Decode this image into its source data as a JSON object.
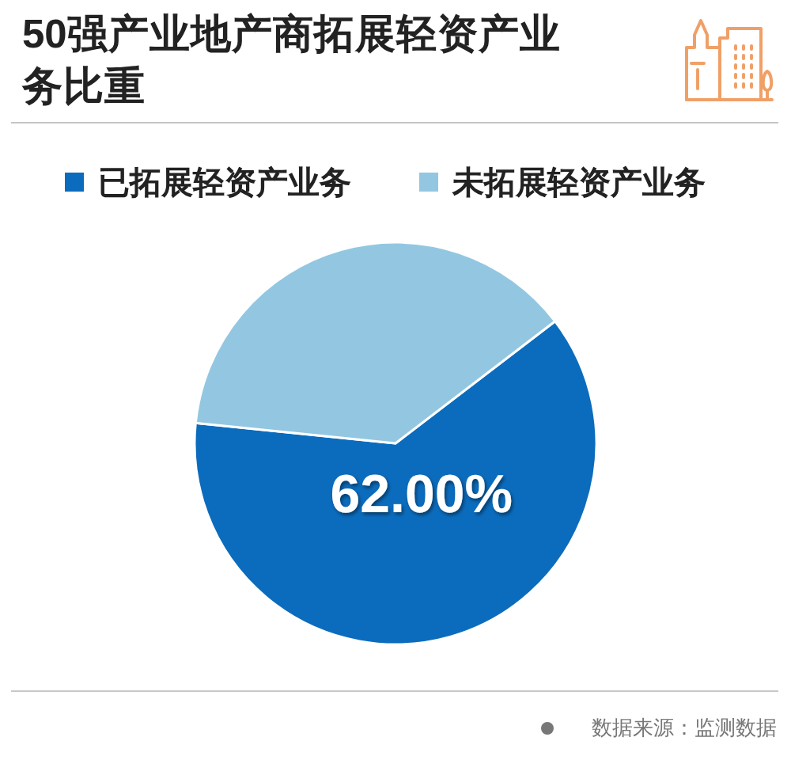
{
  "chart_data": {
    "type": "pie",
    "title": "50强产业地产商拓展轻资产业务比重",
    "categories": [
      "已拓展轻资产业务",
      "未拓展轻资产业务"
    ],
    "values": [
      62,
      38
    ],
    "colors": [
      "#0b6cbd",
      "#93c7e1"
    ],
    "value_labels": [
      "62.00%",
      null
    ],
    "legend": "top",
    "annotations": [
      "数据来源：监测数据"
    ]
  }
}
